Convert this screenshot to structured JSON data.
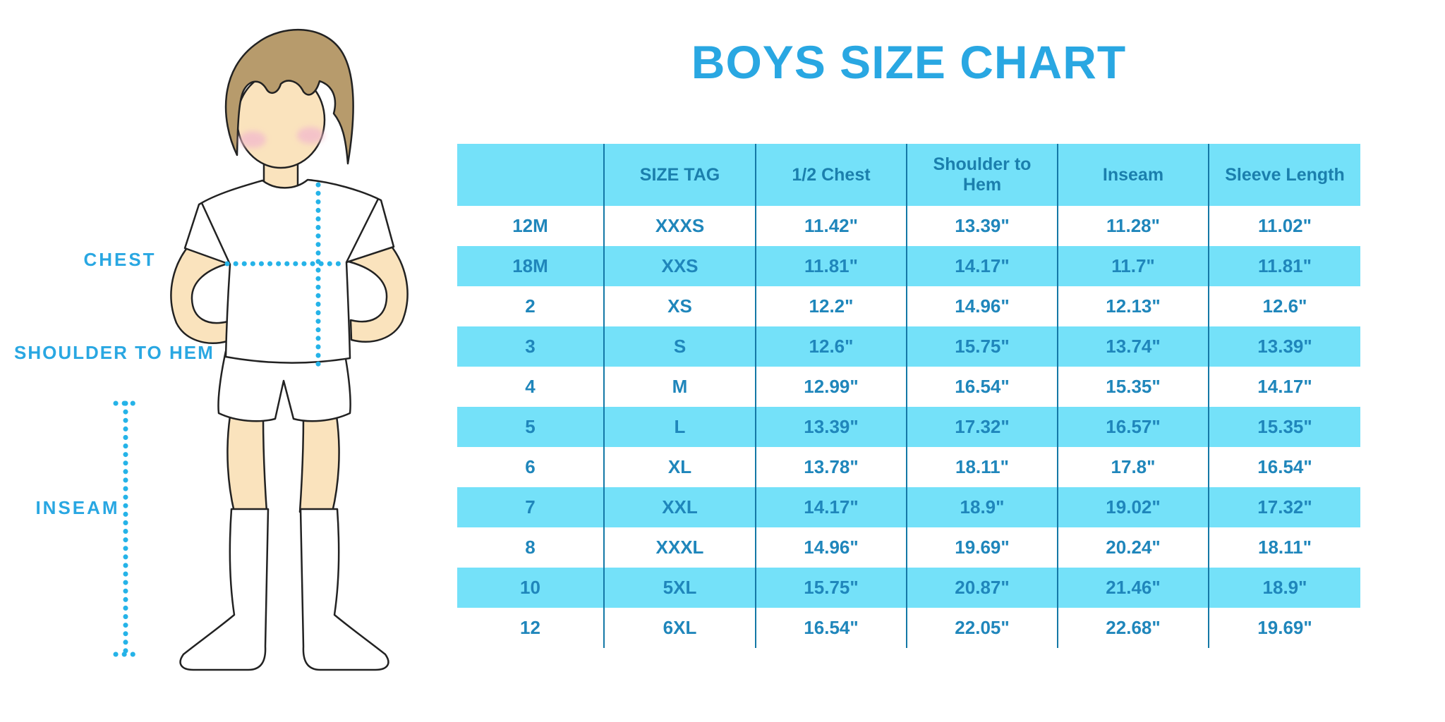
{
  "title": "BOYS SIZE CHART",
  "measurement_labels": {
    "chest": "CHEST",
    "shoulder_to_hem": "SHOULDER TO HEM",
    "inseam": "INSEAM"
  },
  "chart_data": {
    "type": "table",
    "title": "BOYS SIZE CHART",
    "columns": [
      "",
      "SIZE TAG",
      "1/2 Chest",
      "Shoulder to Hem",
      "Inseam",
      "Sleeve Length"
    ],
    "rows": [
      [
        "12M",
        "XXXS",
        "11.42\"",
        "13.39\"",
        "11.28\"",
        "11.02\""
      ],
      [
        "18M",
        "XXS",
        "11.81\"",
        "14.17\"",
        "11.7\"",
        "11.81\""
      ],
      [
        "2",
        "XS",
        "12.2\"",
        "14.96\"",
        "12.13\"",
        "12.6\""
      ],
      [
        "3",
        "S",
        "12.6\"",
        "15.75\"",
        "13.74\"",
        "13.39\""
      ],
      [
        "4",
        "M",
        "12.99\"",
        "16.54\"",
        "15.35\"",
        "14.17\""
      ],
      [
        "5",
        "L",
        "13.39\"",
        "17.32\"",
        "16.57\"",
        "15.35\""
      ],
      [
        "6",
        "XL",
        "13.78\"",
        "18.11\"",
        "17.8\"",
        "16.54\""
      ],
      [
        "7",
        "XXL",
        "14.17\"",
        "18.9\"",
        "19.02\"",
        "17.32\""
      ],
      [
        "8",
        "XXXL",
        "14.96\"",
        "19.69\"",
        "20.24\"",
        "18.11\""
      ],
      [
        "10",
        "5XL",
        "15.75\"",
        "20.87\"",
        "21.46\"",
        "18.9\""
      ],
      [
        "12",
        "6XL",
        "16.54\"",
        "22.05\"",
        "22.68\"",
        "19.69\""
      ]
    ],
    "layout_hints": {
      "striping": "header band and every second data row highlighted cyan, first data row white",
      "grid": "vertical column separators only, no horizontal lines, no outer border",
      "legend_position": "none"
    }
  },
  "colors": {
    "accent_blue": "#29A7E2",
    "band_cyan": "#74E1F9",
    "table_text": "#1F86BB",
    "header_text": "#1B7FAD",
    "grid_line": "#1478A6",
    "dotted_line": "#25B3E8",
    "skin": "#FAE3BD",
    "hair": "#B79B6C",
    "cheek": "#F3BCCC"
  }
}
